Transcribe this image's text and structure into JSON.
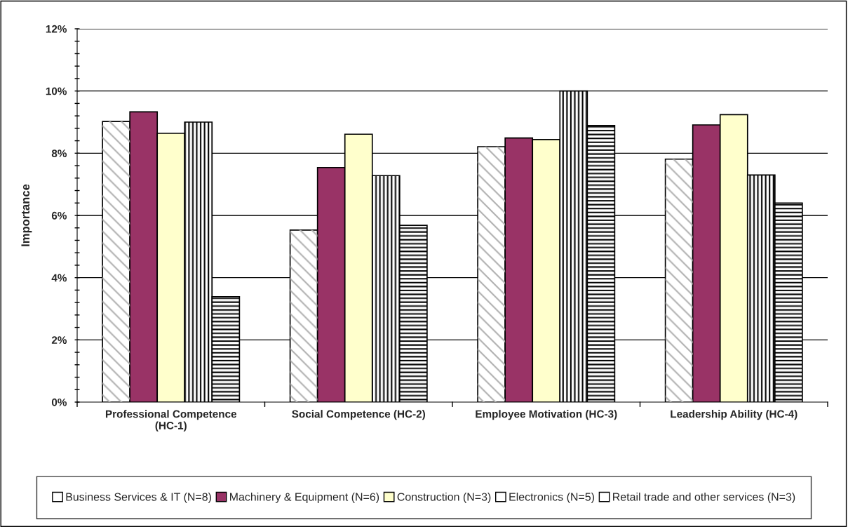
{
  "chart_data": {
    "type": "bar",
    "ylabel": "Importance",
    "categories": [
      "Professional Competence\n(HC-1)",
      "Social Competence (HC-2)",
      "Employee Motivation (HC-3)",
      "Leadership Ability (HC-4)"
    ],
    "series": [
      {
        "name": "Business Services & IT (N=8)",
        "color": "#ffffff",
        "values": [
          9.02,
          5.53,
          8.21,
          7.81
        ]
      },
      {
        "name": "Machinery & Equipment (N=6)",
        "color": "#993366",
        "values": [
          9.33,
          7.54,
          8.49,
          8.91
        ]
      },
      {
        "name": "Construction (N=3)",
        "color": "#ffffcc",
        "values": [
          8.64,
          8.61,
          8.44,
          9.24
        ]
      },
      {
        "name": "Electronics (N=5)",
        "color": "#ffffff",
        "values": [
          9.0,
          7.28,
          10.0,
          7.3
        ]
      },
      {
        "name": "Retail trade and other services (N=3)",
        "color": "#ffffff",
        "values": [
          3.39,
          5.68,
          8.89,
          6.4
        ]
      }
    ],
    "ylim": [
      0,
      12
    ],
    "yticks": [
      {
        "value": 0,
        "label": "0%"
      },
      {
        "value": 0.4,
        "label": null
      },
      {
        "value": 0.8,
        "label": null
      },
      {
        "value": 1.2,
        "label": null
      },
      {
        "value": 1.6,
        "label": null
      },
      {
        "value": 2,
        "label": "2%"
      },
      {
        "value": 2.4,
        "label": null
      },
      {
        "value": 2.8,
        "label": null
      },
      {
        "value": 3.2,
        "label": null
      },
      {
        "value": 3.6,
        "label": null
      },
      {
        "value": 4,
        "label": "4%"
      },
      {
        "value": 4.4,
        "label": null
      },
      {
        "value": 4.8,
        "label": null
      },
      {
        "value": 5.2,
        "label": null
      },
      {
        "value": 5.6,
        "label": null
      },
      {
        "value": 6,
        "label": "6%"
      },
      {
        "value": 6.4,
        "label": null
      },
      {
        "value": 6.8,
        "label": null
      },
      {
        "value": 7.2,
        "label": null
      },
      {
        "value": 7.6,
        "label": null
      },
      {
        "value": 8,
        "label": "8%"
      },
      {
        "value": 8.4,
        "label": null
      },
      {
        "value": 8.8,
        "label": null
      },
      {
        "value": 9.2,
        "label": null
      },
      {
        "value": 9.6,
        "label": null
      },
      {
        "value": 10,
        "label": "10%"
      },
      {
        "value": 10.4,
        "label": null
      },
      {
        "value": 10.8,
        "label": null
      },
      {
        "value": 11.2,
        "label": null
      },
      {
        "value": 11.6,
        "label": null
      },
      {
        "value": 12,
        "label": "12%"
      }
    ],
    "grid": "y",
    "legend": "bottom"
  }
}
